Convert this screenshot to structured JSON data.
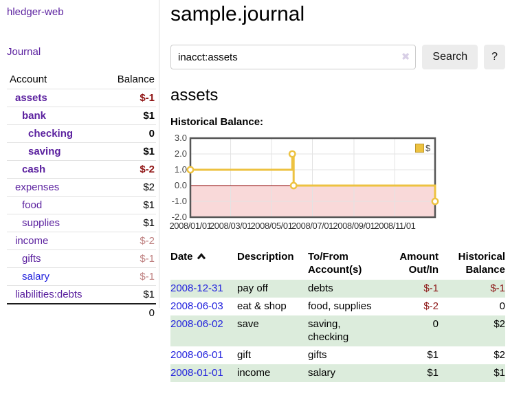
{
  "colors": {
    "link_purple": "#5b219f",
    "link_blue": "#2222dd",
    "negative_strong": "#8f1212",
    "negative_muted": "#bf8181",
    "row_green": "#dcecdc",
    "chart_line": "#edc240",
    "chart_negative_fill": "#f9d9d9",
    "chart_zero_line": "#8b0000"
  },
  "sidebar": {
    "app_title": "hledger-web",
    "journal_link": "Journal",
    "accounts": {
      "header_account": "Account",
      "header_balance": "Balance",
      "rows": [
        {
          "name": "assets",
          "balance": "$-1",
          "depth": 0,
          "current": true,
          "muted": false,
          "name_color": "purple"
        },
        {
          "name": "bank",
          "balance": "$1",
          "depth": 1,
          "current": true,
          "muted": false,
          "name_color": "purple"
        },
        {
          "name": "checking",
          "balance": "0",
          "depth": 2,
          "current": true,
          "muted": false,
          "name_color": "purple"
        },
        {
          "name": "saving",
          "balance": "$1",
          "depth": 2,
          "current": true,
          "muted": false,
          "name_color": "purple"
        },
        {
          "name": "cash",
          "balance": "$-2",
          "depth": 1,
          "current": true,
          "muted": false,
          "name_color": "purple"
        },
        {
          "name": "expenses",
          "balance": "$2",
          "depth": 0,
          "current": false,
          "muted": false,
          "name_color": "purple"
        },
        {
          "name": "food",
          "balance": "$1",
          "depth": 1,
          "current": false,
          "muted": false,
          "name_color": "purple"
        },
        {
          "name": "supplies",
          "balance": "$1",
          "depth": 1,
          "current": false,
          "muted": false,
          "name_color": "purple"
        },
        {
          "name": "income",
          "balance": "$-2",
          "depth": 0,
          "current": false,
          "muted": true,
          "name_color": "purple"
        },
        {
          "name": "gifts",
          "balance": "$-1",
          "depth": 1,
          "current": false,
          "muted": true,
          "name_color": "purple"
        },
        {
          "name": "salary",
          "balance": "$-1",
          "depth": 1,
          "current": false,
          "muted": true,
          "name_color": "blue"
        },
        {
          "name": "liabilities:debts",
          "balance": "$1",
          "depth": 0,
          "current": false,
          "muted": false,
          "name_color": "purple"
        }
      ],
      "total": "0"
    }
  },
  "main": {
    "title": "sample.journal",
    "search": {
      "value": "inacct:assets",
      "clear_icon": "✖",
      "search_button": "Search",
      "help_button": "?"
    },
    "account_heading": "assets",
    "chart_title": "Historical Balance:"
  },
  "chart_data": {
    "type": "line",
    "step": true,
    "title": "Historical Balance",
    "series": [
      {
        "name": "$",
        "color": "#edc240",
        "points": [
          [
            "2008-01-01",
            1
          ],
          [
            "2008-06-01",
            2
          ],
          [
            "2008-06-03",
            0
          ],
          [
            "2008-12-31",
            -1
          ]
        ]
      }
    ],
    "x_range": [
      "2008-01-01",
      "2008-12-31"
    ],
    "ylim": [
      -2,
      3
    ],
    "yticks": [
      3,
      2,
      1,
      0,
      -1,
      -2
    ],
    "ytick_labels": [
      "3.0",
      "2.0",
      "1.0",
      "0.0",
      "-1.0",
      "-2.0"
    ],
    "xticks": [
      "2008-01-01",
      "2008-03-01",
      "2008-05-01",
      "2008-07-01",
      "2008-09-01",
      "2008-11-01"
    ],
    "xtick_labels": [
      "2008/01/01",
      "2008/03/01",
      "2008/05/01",
      "2008/07/01",
      "2008/09/01",
      "2008/11/01"
    ],
    "legend": {
      "label": "$",
      "position": "top-right"
    },
    "grid": true,
    "negative_region_fill": "#f9d9d9",
    "zero_line_color": "#8b0000"
  },
  "transactions": {
    "headers": {
      "date": "Date",
      "description": "Description",
      "accounts": "To/From Account(s)",
      "amount": "Amount Out/In",
      "balance": "Historical Balance"
    },
    "sort": {
      "column": "date",
      "direction": "ascending"
    },
    "rows": [
      {
        "date": "2008-12-31",
        "description": "pay off",
        "accounts": "debts",
        "amount": "$-1",
        "balance": "$-1"
      },
      {
        "date": "2008-06-03",
        "description": "eat & shop",
        "accounts": "food, supplies",
        "amount": "$-2",
        "balance": "0"
      },
      {
        "date": "2008-06-02",
        "description": "save",
        "accounts": "saving, checking",
        "amount": "0",
        "balance": "$2"
      },
      {
        "date": "2008-06-01",
        "description": "gift",
        "accounts": "gifts",
        "amount": "$1",
        "balance": "$2"
      },
      {
        "date": "2008-01-01",
        "description": "income",
        "accounts": "salary",
        "amount": "$1",
        "balance": "$1"
      }
    ]
  }
}
